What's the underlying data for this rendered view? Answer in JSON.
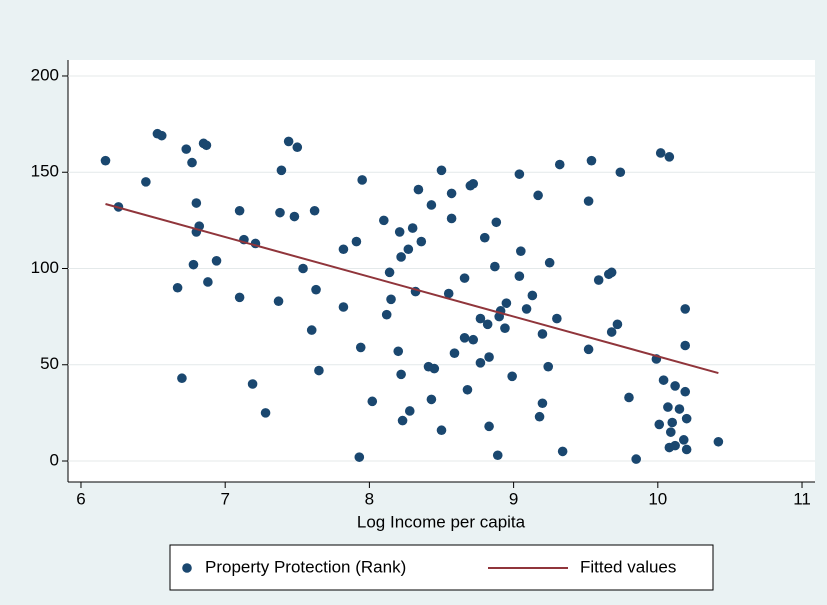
{
  "chart_data": {
    "type": "scatter",
    "x_label": "Log Income per capita",
    "xlim": [
      5.91,
      11.09
    ],
    "ylim": [
      -10.9,
      208.3
    ],
    "xticks": [
      6,
      7,
      8,
      9,
      10,
      11
    ],
    "yticks": [
      0,
      50,
      100,
      150,
      200
    ],
    "grid": true,
    "legend": "bottom",
    "series": [
      {
        "name": "Property Protection (Rank)",
        "type": "scatter",
        "color": "#1a476f",
        "x": [
          6.17,
          6.26,
          6.45,
          6.53,
          6.56,
          6.67,
          6.7,
          6.73,
          6.77,
          6.78,
          6.8,
          6.8,
          6.82,
          6.85,
          6.87,
          6.88,
          6.94,
          7.1,
          7.1,
          7.13,
          7.19,
          7.21,
          7.28,
          7.37,
          7.38,
          7.39,
          7.44,
          7.48,
          7.5,
          7.54,
          7.6,
          7.62,
          7.63,
          7.65,
          7.82,
          7.82,
          7.91,
          7.93,
          7.94,
          7.95,
          8.02,
          8.1,
          8.12,
          8.14,
          8.15,
          8.2,
          8.21,
          8.22,
          8.22,
          8.23,
          8.27,
          8.28,
          8.3,
          8.32,
          8.34,
          8.36,
          8.41,
          8.43,
          8.43,
          8.45,
          8.5,
          8.5,
          8.55,
          8.57,
          8.57,
          8.59,
          8.66,
          8.66,
          8.68,
          8.7,
          8.72,
          8.72,
          8.77,
          8.77,
          8.8,
          8.82,
          8.83,
          8.83,
          8.87,
          8.88,
          8.89,
          8.9,
          8.91,
          8.94,
          8.95,
          8.99,
          9.04,
          9.04,
          9.05,
          9.09,
          9.13,
          9.17,
          9.18,
          9.2,
          9.2,
          9.24,
          9.25,
          9.3,
          9.32,
          9.34,
          9.52,
          9.52,
          9.54,
          9.59,
          9.66,
          9.68,
          9.68,
          9.72,
          9.74,
          9.8,
          9.85,
          9.99,
          10.01,
          10.02,
          10.04,
          10.08,
          10.07,
          10.08,
          10.09,
          10.1,
          10.12,
          10.12,
          10.15,
          10.18,
          10.19,
          10.19,
          10.19,
          10.2,
          10.2,
          10.42
        ],
        "values": [
          156,
          132,
          145,
          170,
          169,
          90,
          43,
          162,
          155,
          102,
          134,
          119,
          122,
          165,
          164,
          93,
          104,
          130,
          85,
          115,
          40,
          113,
          25,
          83,
          129,
          151,
          166,
          127,
          163,
          100,
          68,
          130,
          89,
          47,
          80,
          110,
          114,
          2,
          59,
          146,
          31,
          125,
          76,
          98,
          84,
          57,
          119,
          106,
          45,
          21,
          110,
          26,
          121,
          88,
          141,
          114,
          49,
          133,
          32,
          48,
          151,
          16,
          87,
          139,
          126,
          56,
          95,
          64,
          37,
          143,
          63,
          144,
          51,
          74,
          116,
          71,
          54,
          18,
          101,
          124,
          3,
          75,
          78,
          69,
          82,
          44,
          149,
          96,
          109,
          79,
          86,
          138,
          23,
          66,
          30,
          49,
          103,
          74,
          154,
          5,
          135,
          58,
          156,
          94,
          97,
          98,
          67,
          71,
          150,
          33,
          1,
          53,
          19,
          160,
          42,
          158,
          28,
          7,
          15,
          20,
          39,
          8,
          27,
          11,
          79,
          36,
          60,
          22,
          6,
          10
        ]
      },
      {
        "name": "Fitted values",
        "type": "line",
        "color": "#90353b",
        "x": [
          6.17,
          10.42
        ],
        "values": [
          133.5,
          45.7
        ]
      }
    ]
  }
}
